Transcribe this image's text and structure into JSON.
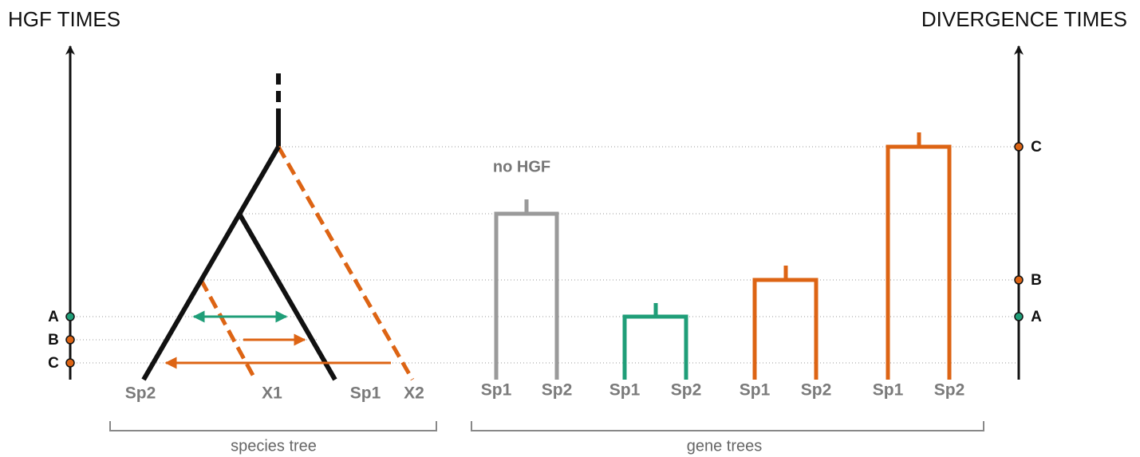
{
  "left_axis": {
    "title": "HGF TIMES",
    "events": [
      "A",
      "B",
      "C"
    ]
  },
  "right_axis": {
    "title": "DIVERGENCE TIMES",
    "events": [
      "C",
      "B",
      "A"
    ]
  },
  "species_tree": {
    "label": "species tree",
    "leaves": [
      "Sp2",
      "X1",
      "Sp1",
      "X2"
    ]
  },
  "gene_trees": {
    "label": "gene trees",
    "annotation": "no HGF",
    "trees": [
      {
        "leaves": [
          "Sp1",
          "Sp2"
        ]
      },
      {
        "leaves": [
          "Sp1",
          "Sp2"
        ]
      },
      {
        "leaves": [
          "Sp1",
          "Sp2"
        ]
      },
      {
        "leaves": [
          "Sp1",
          "Sp2"
        ]
      }
    ]
  }
}
